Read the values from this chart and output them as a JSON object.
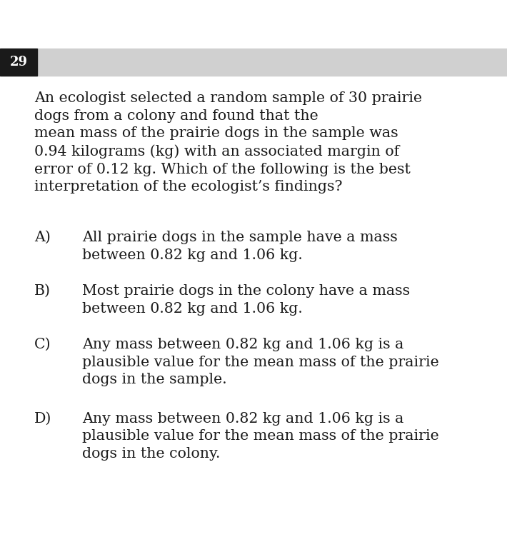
{
  "question_number": "29",
  "header_bg_color": "#d0d0d0",
  "number_bg_color": "#1a1a1a",
  "number_text_color": "#ffffff",
  "body_bg_color": "#ffffff",
  "text_color": "#1a1a1a",
  "question_text": "An ecologist selected a random sample of 30 prairie\ndogs from a colony and found that the\nmean mass of the prairie dogs in the sample was\n0.94 kilograms (kg) with an associated margin of\nerror of 0.12 kg. Which of the following is the best\ninterpretation of the ecologist’s findings?",
  "answers": [
    {
      "label": "A)",
      "text": "All prairie dogs in the sample have a mass\nbetween 0.82 kg and 1.06 kg."
    },
    {
      "label": "B)",
      "text": "Most prairie dogs in the colony have a mass\nbetween 0.82 kg and 1.06 kg."
    },
    {
      "label": "C)",
      "text": "Any mass between 0.82 kg and 1.06 kg is a\nplausible value for the mean mass of the prairie\ndogs in the sample."
    },
    {
      "label": "D)",
      "text": "Any mass between 0.82 kg and 1.06 kg is a\nplausible value for the mean mass of the prairie\ndogs in the colony."
    }
  ],
  "font_size_question": 14.8,
  "font_size_answer": 14.8,
  "font_size_number": 13,
  "fig_width": 7.1,
  "fig_height": 7.66,
  "dpi": 100
}
